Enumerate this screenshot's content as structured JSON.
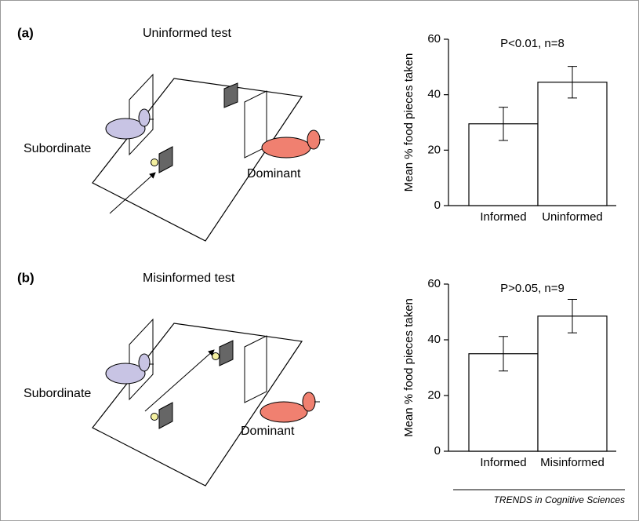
{
  "panels": [
    {
      "label": "(a)",
      "test": "Uninformed test",
      "subordinate": "Subordinate",
      "dominant": "Dominant"
    },
    {
      "label": "(b)",
      "test": "Misinformed test",
      "subordinate": "Subordinate",
      "dominant": "Dominant"
    }
  ],
  "credit": "TRENDS in Cognitive Sciences",
  "chart_data": [
    {
      "type": "bar",
      "title": "P<0.01, n=8",
      "y_label": "Mean % food pieces taken",
      "categories": [
        "Informed",
        "Uninformed"
      ],
      "values": [
        29.5,
        44.5
      ],
      "errors": [
        6,
        5.7
      ],
      "color": "#ffffff",
      "ylim": [
        0,
        60
      ],
      "yticks": [
        0,
        20,
        40,
        60
      ]
    },
    {
      "type": "bar",
      "title": "P>0.05, n=9",
      "y_label": "Mean % food pieces taken",
      "categories": [
        "Informed",
        "Misinformed"
      ],
      "values": [
        35,
        48.5
      ],
      "errors": [
        6.2,
        6
      ],
      "color": "#ffffff",
      "ylim": [
        0,
        60
      ],
      "yticks": [
        0,
        20,
        40,
        60
      ]
    }
  ]
}
